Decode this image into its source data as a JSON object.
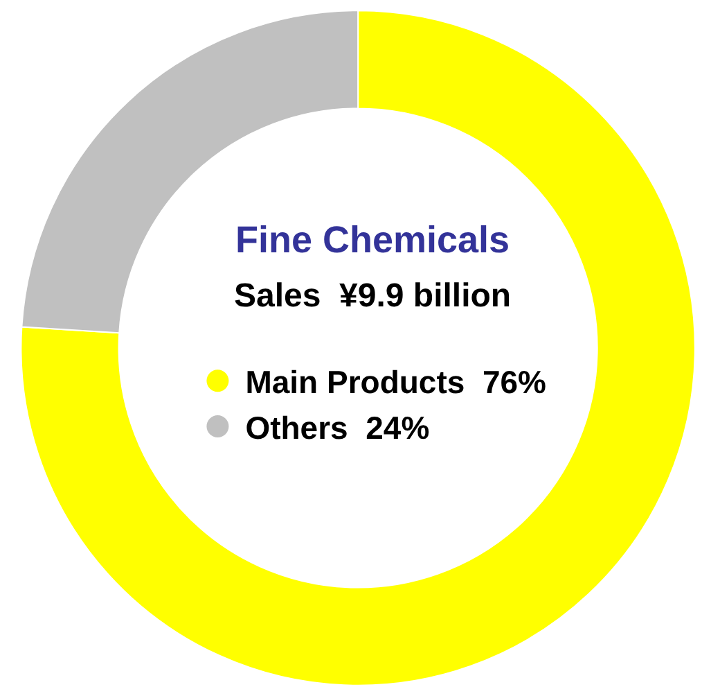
{
  "chart_data": {
    "type": "donut",
    "title": "Fine Chemicals",
    "subtitle": "Sales  ¥9.9 billion",
    "categories": [
      "Main Products",
      "Others"
    ],
    "values": [
      76,
      24
    ],
    "value_labels": [
      "76%",
      "24%"
    ],
    "colors": [
      "#ffff00",
      "#c0c0c0"
    ],
    "legend": "center"
  }
}
